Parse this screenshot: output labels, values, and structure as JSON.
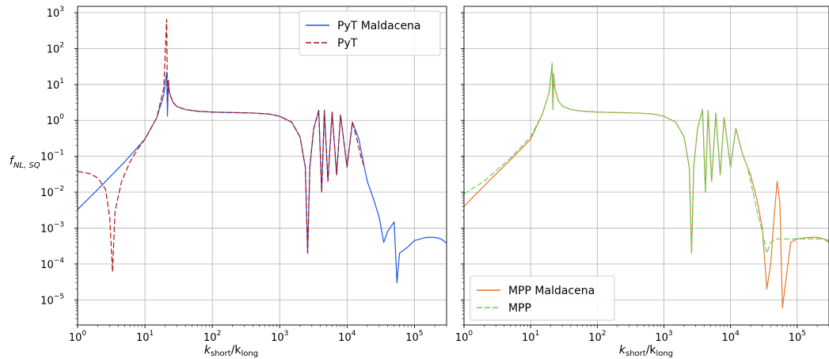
{
  "figure": {
    "ylabel_main": "f",
    "ylabel_sub": "NL, SQ",
    "xlabel_main": "k",
    "xlabel_short": "short",
    "xlabel_sep": "/k",
    "xlabel_long": "long"
  },
  "chart_data": [
    {
      "type": "line",
      "xscale": "log",
      "yscale": "log",
      "xlim": [
        1,
        300000
      ],
      "ylim": [
        2e-06,
        1500
      ],
      "grid": true,
      "legend_position": "top-right",
      "xtick_labels": [
        "10^0",
        "10^1",
        "10^2",
        "10^3",
        "10^4",
        "10^5"
      ],
      "ytick_labels": [
        "10^-5",
        "10^-4",
        "10^-3",
        "10^-2",
        "10^-1",
        "10^0",
        "10^1",
        "10^2",
        "10^3"
      ],
      "series": [
        {
          "name": "PyT Maldacena",
          "color": "#1f55e6",
          "dash": "solid",
          "x": [
            1,
            2,
            5,
            10,
            15,
            19,
            21,
            21.6,
            22.2,
            23,
            26,
            30,
            40,
            60,
            100,
            200,
            400,
            700,
            1000,
            1500,
            2000,
            2400,
            2600,
            2800,
            3200,
            3800,
            4200,
            4600,
            5200,
            6000,
            7000,
            8000,
            10000,
            12000,
            15000,
            18000,
            20000,
            25000,
            30000,
            35000,
            40000,
            50000,
            55000,
            60000,
            80000,
            100000,
            150000,
            200000,
            250000,
            300000
          ],
          "y": [
            0.0033,
            0.012,
            0.07,
            0.3,
            1.2,
            5,
            22,
            1.3,
            12,
            6,
            3.2,
            2.4,
            2.0,
            1.8,
            1.7,
            1.65,
            1.6,
            1.5,
            1.3,
            0.9,
            0.35,
            0.05,
            0.0002,
            0.05,
            0.6,
            1.9,
            0.01,
            1.9,
            0.02,
            1.7,
            0.03,
            1.4,
            0.05,
            0.9,
            0.3,
            0.05,
            0.02,
            0.006,
            0.002,
            0.0004,
            0.0008,
            0.0015,
            3e-05,
            0.0002,
            0.0003,
            0.00045,
            0.00055,
            0.00055,
            0.0005,
            0.00038
          ]
        },
        {
          "name": "PyT",
          "color": "#b01010",
          "dash": "dashed",
          "x": [
            1,
            1.5,
            2,
            2.6,
            3,
            3.3,
            3.6,
            4.5,
            6,
            8,
            10,
            15,
            19,
            21,
            21.6,
            22.2,
            23,
            26,
            30,
            40,
            60,
            100,
            200,
            400,
            700,
            1000,
            1500,
            2000,
            2400,
            2600,
            2800,
            3200,
            3800,
            4200,
            4600,
            5200,
            6000,
            7000,
            8000,
            10000,
            12000,
            14000,
            16000,
            18000
          ],
          "y": [
            0.038,
            0.033,
            0.025,
            0.012,
            0.002,
            6e-05,
            0.003,
            0.02,
            0.07,
            0.17,
            0.3,
            1.2,
            8,
            650,
            3,
            14,
            6,
            3.2,
            2.4,
            2.0,
            1.8,
            1.7,
            1.65,
            1.6,
            1.5,
            1.3,
            0.9,
            0.35,
            0.05,
            0.0002,
            0.05,
            0.6,
            1.9,
            0.01,
            1.9,
            0.02,
            1.7,
            0.03,
            1.4,
            0.05,
            0.9,
            0.3,
            0.1,
            0.05
          ]
        }
      ]
    },
    {
      "type": "line",
      "xscale": "log",
      "yscale": "log",
      "xlim": [
        1,
        300000
      ],
      "ylim": [
        2e-06,
        1500
      ],
      "grid": true,
      "legend_position": "bottom-left",
      "xtick_labels": [
        "10^0",
        "10^1",
        "10^2",
        "10^3",
        "10^4",
        "10^5"
      ],
      "series": [
        {
          "name": "MPP Maldacena",
          "color": "#e8782a",
          "dash": "solid",
          "x": [
            1,
            2,
            5,
            10,
            15,
            19,
            21,
            21.6,
            22.2,
            23,
            26,
            30,
            40,
            60,
            100,
            200,
            400,
            700,
            1000,
            1500,
            2000,
            2400,
            2600,
            2800,
            3200,
            3800,
            4200,
            4600,
            5200,
            6000,
            7000,
            8000,
            10000,
            12000,
            15000,
            20000,
            25000,
            30000,
            35000,
            40000,
            45000,
            50000,
            55000,
            60000,
            80000,
            100000,
            150000,
            200000,
            250000,
            300000
          ],
          "y": [
            0.004,
            0.015,
            0.08,
            0.3,
            1.5,
            6,
            35,
            2,
            20,
            8,
            3.5,
            2.5,
            2.0,
            1.8,
            1.7,
            1.65,
            1.6,
            1.5,
            1.3,
            0.9,
            0.35,
            0.05,
            0.0002,
            0.05,
            0.6,
            2.0,
            0.01,
            1.9,
            0.02,
            1.6,
            0.03,
            1.2,
            0.05,
            0.6,
            0.12,
            0.03,
            0.006,
            0.001,
            2e-05,
            0.0001,
            0.002,
            0.02,
            0.005,
            6e-06,
            0.0004,
            0.0005,
            0.00055,
            0.00055,
            0.0005,
            0.0004
          ]
        },
        {
          "name": "MPP",
          "color": "#5cd65c",
          "dash": "dashed",
          "x": [
            1,
            2,
            5,
            10,
            15,
            19,
            21,
            21.6,
            22.2,
            23,
            26,
            30,
            40,
            60,
            100,
            200,
            400,
            700,
            1000,
            1500,
            2000,
            2400,
            2600,
            2800,
            3200,
            3800,
            4200,
            4600,
            5200,
            6000,
            7000,
            8000,
            10000,
            12000,
            15000,
            18000,
            20000,
            25000,
            30000,
            35000,
            40000,
            50000,
            60000,
            80000,
            100000,
            150000,
            200000,
            250000,
            300000
          ],
          "y": [
            0.009,
            0.02,
            0.09,
            0.35,
            1.5,
            6,
            40,
            2,
            20,
            8,
            3.5,
            2.5,
            2.0,
            1.8,
            1.7,
            1.65,
            1.6,
            1.5,
            1.3,
            0.9,
            0.35,
            0.05,
            0.0002,
            0.05,
            0.6,
            2.0,
            0.01,
            1.9,
            0.02,
            1.6,
            0.03,
            1.2,
            0.05,
            0.6,
            0.12,
            0.05,
            0.02,
            0.003,
            0.0008,
            0.0002,
            0.0004,
            0.0005,
            0.0005,
            0.0005,
            0.0005,
            0.0005,
            0.0005,
            0.0005,
            0.00045
          ]
        }
      ]
    }
  ]
}
